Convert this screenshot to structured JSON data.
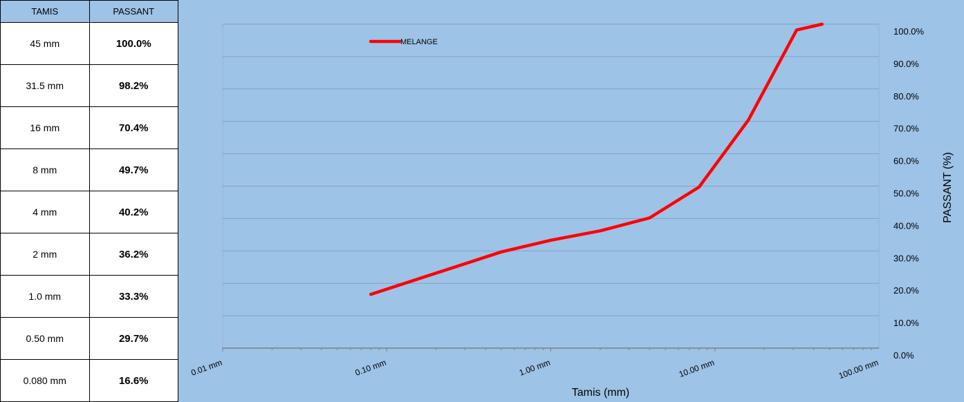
{
  "table": {
    "headers": [
      "TAMIS",
      "PASSANT"
    ],
    "rows": [
      {
        "tamis": "45 mm",
        "passant": "100.0%"
      },
      {
        "tamis": "31.5 mm",
        "passant": "98.2%"
      },
      {
        "tamis": "16 mm",
        "passant": "70.4%"
      },
      {
        "tamis": "8 mm",
        "passant": "49.7%"
      },
      {
        "tamis": "4 mm",
        "passant": "40.2%"
      },
      {
        "tamis": "2 mm",
        "passant": "36.2%"
      },
      {
        "tamis": "1.0 mm",
        "passant": "33.3%"
      },
      {
        "tamis": "0.50 mm",
        "passant": "29.7%"
      },
      {
        "tamis": "0.080 mm",
        "passant": "16.6%"
      }
    ]
  },
  "chart_data": {
    "type": "line",
    "xscale": "log",
    "xlim": [
      0.01,
      100
    ],
    "ylim": [
      0,
      100
    ],
    "xlabel": "Tamis (mm)",
    "ylabel": "PASSANT (%)",
    "x_tick_labels": [
      "0.01 mm",
      "0.10 mm",
      "1.00 mm",
      "10.00 mm",
      "100.00 mm"
    ],
    "y_tick_labels": [
      "0.0%",
      "10.0%",
      "20.0%",
      "30.0%",
      "40.0%",
      "50.0%",
      "60.0%",
      "70.0%",
      "80.0%",
      "90.0%",
      "100.0%"
    ],
    "grid": true,
    "legend_position": "top-left",
    "series": [
      {
        "name": "MELANGE",
        "color": "#ff0000",
        "x": [
          0.08,
          0.5,
          1.0,
          2,
          4,
          8,
          16,
          31.5,
          45
        ],
        "y": [
          16.6,
          29.7,
          33.3,
          36.2,
          40.2,
          49.7,
          70.4,
          98.2,
          100.0
        ]
      }
    ]
  }
}
